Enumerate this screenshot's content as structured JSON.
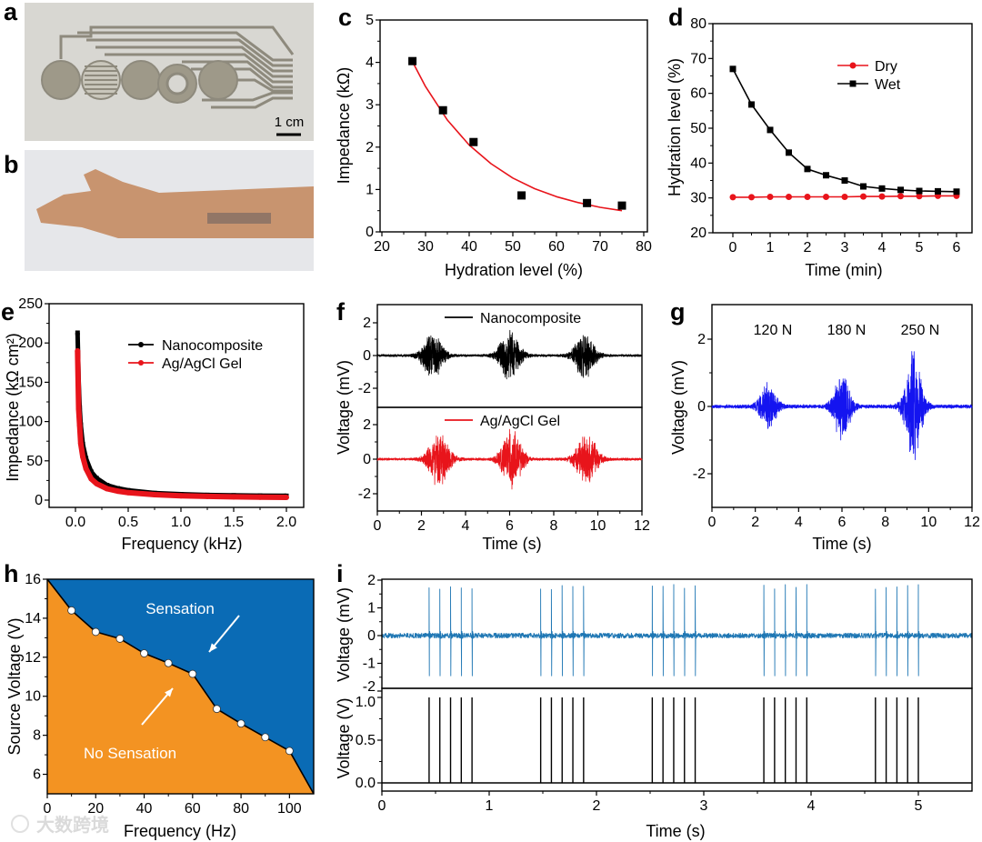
{
  "panel_letters": {
    "a": "a",
    "b": "b",
    "c": "c",
    "d": "d",
    "e": "e",
    "f": "f",
    "g": "g",
    "h": "h",
    "i": "i"
  },
  "photos": {
    "a": {
      "scale_bar": "1 cm"
    },
    "b": {}
  },
  "watermark": "大数跨境",
  "colors": {
    "black": "#000000",
    "red": "#e8141b",
    "blue": "#1414f0",
    "trace_blue": "#1f77b4",
    "sensation": "#0a6bb5",
    "no_sensation": "#f39322"
  },
  "chart_data": [
    {
      "panel": "c",
      "type": "scatter",
      "xlabel": "Hydration level (%)",
      "ylabel": "Impedance (kΩ)",
      "xlim": [
        20,
        80
      ],
      "ylim": [
        0,
        5
      ],
      "xticks": [
        "20",
        "30",
        "40",
        "50",
        "60",
        "70",
        "80"
      ],
      "yticks": [
        "0",
        "1",
        "2",
        "3",
        "4",
        "5"
      ],
      "points": {
        "x": [
          27,
          34,
          41,
          52,
          67,
          75
        ],
        "y": [
          4.03,
          2.87,
          2.12,
          0.86,
          0.68,
          0.62
        ]
      },
      "fit_curve": {
        "x": [
          27,
          30,
          35,
          40,
          45,
          50,
          55,
          60,
          65,
          70,
          75
        ],
        "y": [
          4.02,
          3.43,
          2.64,
          2.05,
          1.61,
          1.27,
          1.02,
          0.83,
          0.69,
          0.58,
          0.5
        ]
      }
    },
    {
      "panel": "d",
      "type": "line",
      "xlabel": "Time (min)",
      "ylabel": "Hydration level (%)",
      "xlim": [
        -0.55,
        6.35
      ],
      "ylim": [
        20,
        80
      ],
      "xticks": [
        "0",
        "1",
        "2",
        "3",
        "4",
        "5",
        "6"
      ],
      "yticks": [
        "20",
        "30",
        "40",
        "50",
        "60",
        "70",
        "80"
      ],
      "legend_position": "top-right",
      "x": [
        0,
        0.5,
        1,
        1.5,
        2,
        2.5,
        3,
        3.5,
        4,
        4.5,
        5,
        5.5,
        6
      ],
      "series": [
        {
          "name": "Dry",
          "values": [
            30.2,
            30.2,
            30.3,
            30.3,
            30.3,
            30.3,
            30.3,
            30.4,
            30.4,
            30.5,
            30.5,
            30.6,
            30.6
          ]
        },
        {
          "name": "Wet",
          "values": [
            67,
            56.8,
            49.5,
            43,
            38.3,
            36.5,
            35,
            33.3,
            32.7,
            32.3,
            32,
            31.9,
            31.8
          ]
        }
      ]
    },
    {
      "panel": "e",
      "type": "line",
      "xlabel": "Frequency (kHz)",
      "ylabel": "Impedance (kΩ cm²)",
      "xlim": [
        -0.24,
        2.15
      ],
      "ylim": [
        -18,
        250
      ],
      "xticks": [
        "0.0",
        "0.5",
        "1.0",
        "1.5",
        "2.0"
      ],
      "yticks": [
        "0",
        "50",
        "100",
        "150",
        "200",
        "250"
      ],
      "legend_position": "top-right",
      "x": [
        0.02,
        0.03,
        0.04,
        0.05,
        0.07,
        0.1,
        0.15,
        0.2,
        0.3,
        0.4,
        0.5,
        0.75,
        1.0,
        1.25,
        1.5,
        1.75,
        2.0
      ],
      "series": [
        {
          "name": "Nanocomposite",
          "values": [
            213,
            152,
            118,
            96,
            71,
            53,
            36,
            28,
            19,
            15,
            12.5,
            9,
            7.5,
            6.5,
            6,
            5.7,
            5.4
          ]
        },
        {
          "name": "Ag/AgCl Gel",
          "values": [
            190,
            116,
            95,
            72,
            55,
            40,
            27,
            21,
            14.5,
            11.5,
            9.5,
            7,
            5.5,
            4.8,
            4.2,
            3.8,
            3.5
          ]
        }
      ]
    },
    {
      "panel": "f",
      "type": "line",
      "xlabel": "Time (s)",
      "ylabel": "Voltage (mV)",
      "xlim": [
        0,
        12
      ],
      "xticks": [
        "0",
        "2",
        "4",
        "6",
        "8",
        "10",
        "12"
      ],
      "subplots": [
        {
          "name": "Nanocomposite",
          "yticks": [
            "2",
            "0",
            "-2"
          ],
          "ylim": [
            -3.0,
            3.2
          ],
          "baseline_noise_mV": 0.08,
          "bursts": [
            {
              "center_s": 2.5,
              "peak_mV": 1.5
            },
            {
              "center_s": 6.0,
              "peak_mV": 1.6
            },
            {
              "center_s": 9.4,
              "peak_mV": 1.5
            }
          ]
        },
        {
          "name": "Ag/AgCl Gel",
          "yticks": [
            "2",
            "0",
            "-2"
          ],
          "ylim": [
            -3.2,
            3.1
          ],
          "baseline_noise_mV": 0.08,
          "bursts": [
            {
              "center_s": 2.8,
              "peak_mV": 1.7
            },
            {
              "center_s": 6.1,
              "peak_mV": 1.75
            },
            {
              "center_s": 9.5,
              "peak_mV": 1.7
            }
          ]
        }
      ]
    },
    {
      "panel": "g",
      "type": "line",
      "xlabel": "Time (s)",
      "ylabel": "Voltage (mV)",
      "xlim": [
        0,
        12
      ],
      "ylim": [
        -3.05,
        3.05
      ],
      "xticks": [
        "0",
        "2",
        "4",
        "6",
        "8",
        "10",
        "12"
      ],
      "yticks": [
        "2",
        "0",
        "-2"
      ],
      "baseline_noise_mV": 0.06,
      "bursts": [
        {
          "label": "120 N",
          "center_s": 2.6,
          "peak_mV": 0.7
        },
        {
          "label": "180 N",
          "center_s": 6.0,
          "peak_mV": 1.05
        },
        {
          "label": "250 N",
          "center_s": 9.3,
          "peak_mV": 1.8
        }
      ]
    },
    {
      "panel": "h",
      "type": "area",
      "xlabel": "Frequency (Hz)",
      "ylabel": "Source Voltage (V)",
      "xlim": [
        0,
        110
      ],
      "ylim": [
        5,
        16
      ],
      "xticks": [
        "0",
        "20",
        "40",
        "60",
        "80",
        "100"
      ],
      "yticks": [
        "6",
        "8",
        "10",
        "12",
        "14",
        "16"
      ],
      "region_labels": {
        "above": "Sensation",
        "below": "No Sensation"
      },
      "threshold": {
        "x": [
          0,
          10,
          20,
          30,
          40,
          50,
          60,
          70,
          80,
          90,
          100,
          110
        ],
        "y": [
          16,
          14.4,
          13.3,
          12.95,
          12.2,
          11.7,
          11.15,
          9.35,
          8.6,
          7.9,
          7.2,
          5
        ]
      },
      "measured_points": {
        "x": [
          10,
          20,
          30,
          40,
          50,
          60,
          70,
          80,
          90,
          100
        ],
        "y": [
          14.4,
          13.3,
          12.95,
          12.2,
          11.7,
          11.15,
          9.35,
          8.6,
          7.9,
          7.2
        ]
      }
    },
    {
      "panel": "i",
      "type": "line",
      "xlabel": "Time (s)",
      "xlim": [
        0,
        5.5
      ],
      "xticks": [
        "0",
        "1",
        "2",
        "3",
        "4",
        "5"
      ],
      "subplots": [
        {
          "ylabel": "Voltage (mV)",
          "yticks": [
            "2",
            "1",
            "0",
            "-1",
            "-2"
          ],
          "ylim": [
            -2,
            2
          ],
          "spike_max_mV": 1.75,
          "spike_min_mV": -1.45,
          "baseline_noise_mV": 0.06
        },
        {
          "ylabel": "Voltage (V)",
          "yticks": [
            "1.0",
            "0.5",
            "0.0"
          ],
          "ylim": [
            -0.1,
            1.05
          ],
          "pulse_V": 1.0
        }
      ],
      "pulse_times_s": [
        0.44,
        0.54,
        0.64,
        0.74,
        0.84,
        1.48,
        1.58,
        1.68,
        1.78,
        1.88,
        2.52,
        2.62,
        2.72,
        2.82,
        2.92,
        3.56,
        3.66,
        3.76,
        3.86,
        3.96,
        4.6,
        4.7,
        4.8,
        4.9,
        5.0
      ]
    }
  ]
}
